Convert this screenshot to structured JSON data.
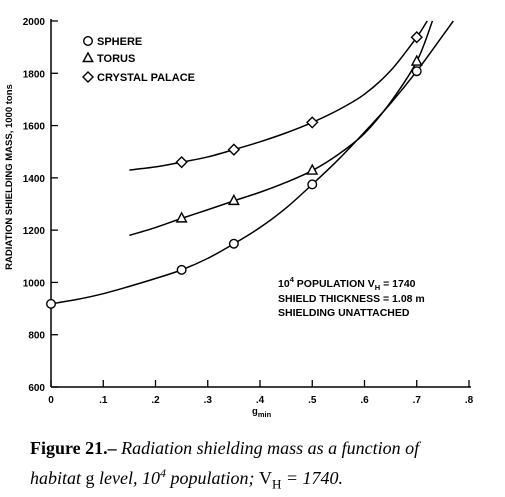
{
  "chart_data": {
    "type": "line",
    "xlabel": "g",
    "xlabel_sub": "min",
    "ylabel": "RADIATION SHIELDING MASS, 1000 tons",
    "xlim": [
      0,
      0.8
    ],
    "ylim": [
      600,
      2000
    ],
    "x_ticks": [
      0,
      0.1,
      0.2,
      0.3,
      0.4,
      0.5,
      0.6,
      0.7,
      0.8
    ],
    "x_tick_labels": [
      "0",
      ".1",
      ".2",
      ".3",
      ".4",
      ".5",
      ".6",
      ".7",
      ".8"
    ],
    "y_ticks": [
      600,
      800,
      1000,
      1200,
      1400,
      1600,
      1800,
      2000
    ],
    "y_tick_labels": [
      "600",
      "800",
      "1000",
      "1200",
      "1400",
      "1600",
      "1800",
      "2000"
    ],
    "grid": false,
    "legend_position": "top-left",
    "series": [
      {
        "name": "SPHERE",
        "marker": "circle",
        "points": [
          [
            0,
            918
          ],
          [
            0.25,
            1048
          ],
          [
            0.35,
            1148
          ],
          [
            0.5,
            1375
          ],
          [
            0.7,
            1808
          ]
        ],
        "curve": [
          [
            0,
            918
          ],
          [
            0.05,
            935
          ],
          [
            0.1,
            957
          ],
          [
            0.15,
            985
          ],
          [
            0.2,
            1015
          ],
          [
            0.25,
            1048
          ],
          [
            0.3,
            1092
          ],
          [
            0.35,
            1148
          ],
          [
            0.4,
            1210
          ],
          [
            0.45,
            1285
          ],
          [
            0.5,
            1375
          ],
          [
            0.55,
            1470
          ],
          [
            0.6,
            1575
          ],
          [
            0.65,
            1685
          ],
          [
            0.7,
            1808
          ],
          [
            0.75,
            1945
          ],
          [
            0.77,
            2000
          ]
        ]
      },
      {
        "name": "TORUS",
        "marker": "triangle",
        "points": [
          [
            0.25,
            1245
          ],
          [
            0.35,
            1312
          ],
          [
            0.5,
            1428
          ],
          [
            0.7,
            1845
          ]
        ],
        "curve": [
          [
            0.15,
            1180
          ],
          [
            0.2,
            1210
          ],
          [
            0.25,
            1245
          ],
          [
            0.3,
            1278
          ],
          [
            0.35,
            1312
          ],
          [
            0.4,
            1345
          ],
          [
            0.45,
            1383
          ],
          [
            0.5,
            1428
          ],
          [
            0.55,
            1490
          ],
          [
            0.6,
            1570
          ],
          [
            0.65,
            1690
          ],
          [
            0.7,
            1845
          ],
          [
            0.73,
            2000
          ]
        ]
      },
      {
        "name": "CRYSTAL PALACE",
        "marker": "diamond",
        "points": [
          [
            0.25,
            1460
          ],
          [
            0.35,
            1508
          ],
          [
            0.5,
            1612
          ],
          [
            0.7,
            1938
          ]
        ],
        "curve": [
          [
            0.15,
            1430
          ],
          [
            0.2,
            1442
          ],
          [
            0.25,
            1460
          ],
          [
            0.3,
            1480
          ],
          [
            0.35,
            1508
          ],
          [
            0.4,
            1538
          ],
          [
            0.45,
            1572
          ],
          [
            0.5,
            1612
          ],
          [
            0.55,
            1660
          ],
          [
            0.6,
            1720
          ],
          [
            0.65,
            1810
          ],
          [
            0.7,
            1938
          ],
          [
            0.72,
            2000
          ]
        ]
      }
    ],
    "annotation": {
      "line1_prefix": "10",
      "line1_exp": "4",
      "line1_mid": " POPULATION V",
      "line1_sub": "H",
      "line1_suffix": " = 1740",
      "line2": "SHIELD THICKNESS = 1.08 m",
      "line3": "SHIELDING UNATTACHED"
    }
  },
  "caption": {
    "label": "Figure 21.–",
    "line1": " Radiation shielding mass as a function of",
    "line2_a": "habitat ",
    "line2_g": "g",
    "line2_b": " level, 10",
    "line2_exp": "4",
    "line2_c": " population; ",
    "line2_v": "V",
    "line2_vsub": "H",
    "line2_d": " = 1740."
  }
}
